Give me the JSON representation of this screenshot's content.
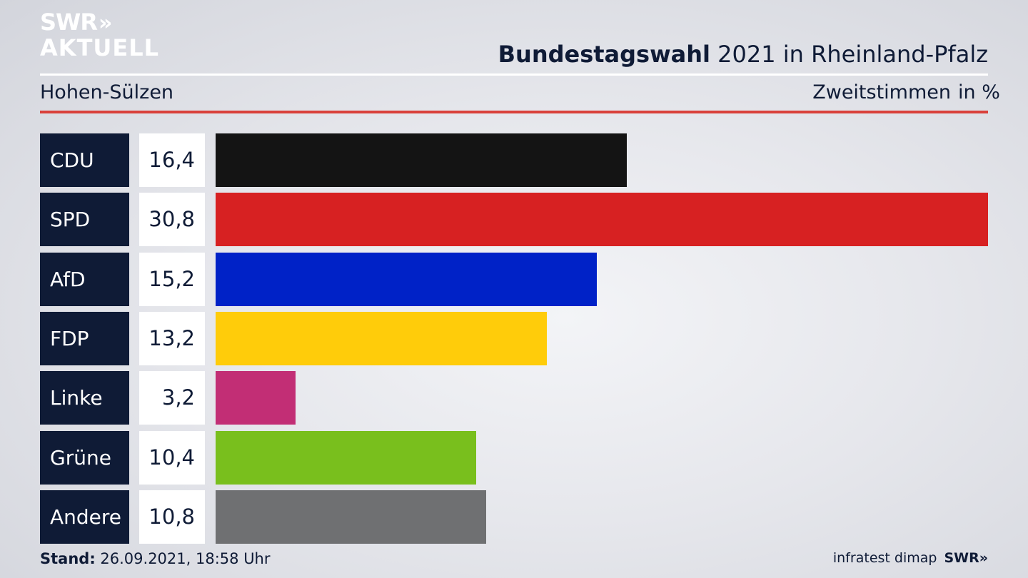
{
  "branding": {
    "logo_line1": "SWR",
    "logo_line2": "AKTUELL",
    "logo_chevrons": "»",
    "footer_source": "infratest dimap",
    "footer_logo": "SWR»"
  },
  "header": {
    "title_bold": "Bundestagswahl",
    "title_rest": "2021 in Rheinland-Pfalz",
    "region": "Hohen-Sülzen",
    "metric": "Zweitstimmen",
    "unit": "in %"
  },
  "footer": {
    "stand_label": "Stand:",
    "stand_value": "26.09.2021, 18:58 Uhr"
  },
  "chart_data": {
    "type": "bar",
    "orientation": "horizontal",
    "title": "Bundestagswahl 2021 in Rheinland-Pfalz",
    "subtitle": "Hohen-Sülzen",
    "xlabel": "Zweitstimmen",
    "unit": "in %",
    "xlim": [
      0,
      30.8
    ],
    "categories": [
      "CDU",
      "SPD",
      "AfD",
      "FDP",
      "Linke",
      "Grüne",
      "Andere"
    ],
    "values": [
      16.4,
      30.8,
      15.2,
      13.2,
      3.2,
      10.4,
      10.8
    ],
    "value_labels": [
      "16,4",
      "30,8",
      "15,2",
      "13,2",
      "3,2",
      "10,4",
      "10,8"
    ],
    "colors": [
      "#141414",
      "#d72122",
      "#0022c7",
      "#ffcc0a",
      "#c22e75",
      "#79bf1d",
      "#6f7072"
    ],
    "grid": false,
    "legend": "none"
  }
}
